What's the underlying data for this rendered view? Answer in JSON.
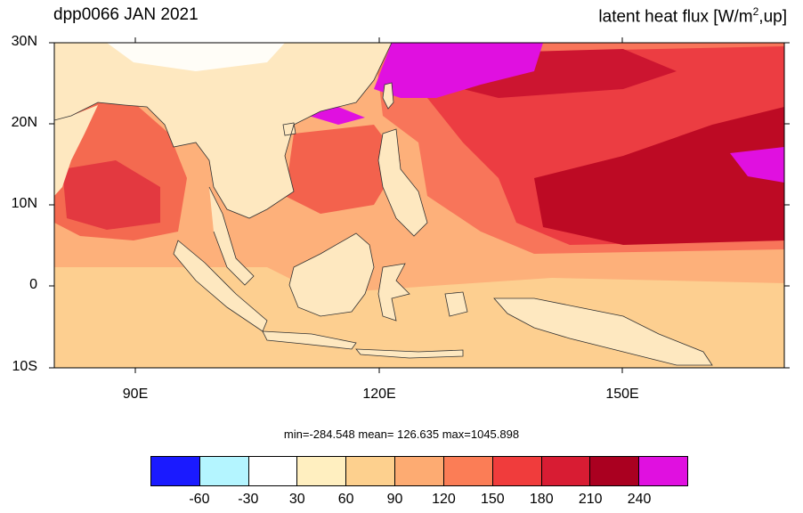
{
  "title_left": "dpp0066 JAN 2021",
  "title_right": {
    "main": "latent heat flux [W/m",
    "sup": "2",
    "tail": ",up]"
  },
  "axes": {
    "y_labels": [
      "30N",
      "20N",
      "10N",
      "0",
      "10S"
    ],
    "x_labels": [
      "90E",
      "120E",
      "150E"
    ]
  },
  "stats": "min=-284.548  mean= 126.635  max=1045.898",
  "colorbar": {
    "colors": [
      "#1a1aff",
      "#b4f5ff",
      "#ffffff",
      "#ffefc0",
      "#fdd08e",
      "#fdab72",
      "#fb7d56",
      "#f03c3c",
      "#d81c33",
      "#aa0020",
      "#e010e0"
    ],
    "labels": [
      "-60",
      "-30",
      "30",
      "60",
      "90",
      "120",
      "150",
      "180",
      "210",
      "240"
    ]
  },
  "map": {
    "ocean_color": "#fdb07a",
    "land_color": "#fee8c0",
    "warm_color": "#ec3d42",
    "hot_color": "#bd0a24",
    "magenta_color": "#e010e0"
  }
}
